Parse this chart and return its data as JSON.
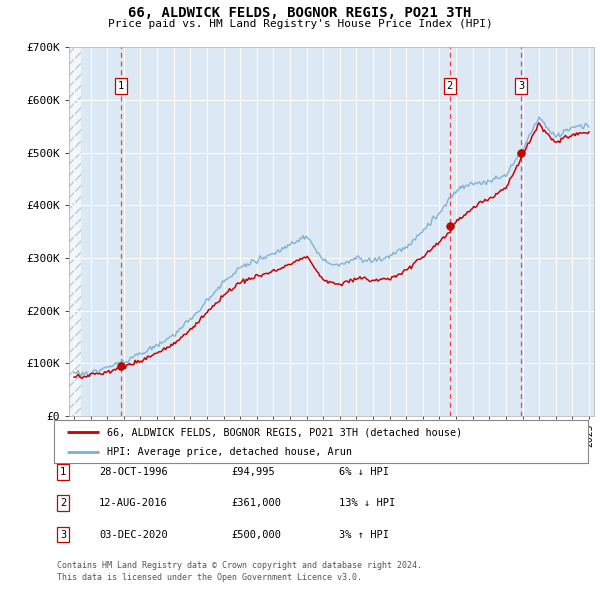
{
  "title": "66, ALDWICK FELDS, BOGNOR REGIS, PO21 3TH",
  "subtitle": "Price paid vs. HM Land Registry's House Price Index (HPI)",
  "background_color": "#dce9f5",
  "plot_bg": "#dce9f5",
  "red_line_color": "#cc0000",
  "blue_line_color": "#7ab0d4",
  "sale_dot_color": "#cc0000",
  "dashed_line_color": "#ee4444",
  "ylim": [
    0,
    700000
  ],
  "yticks": [
    0,
    100000,
    200000,
    300000,
    400000,
    500000,
    600000,
    700000
  ],
  "ytick_labels": [
    "£0",
    "£100K",
    "£200K",
    "£300K",
    "£400K",
    "£500K",
    "£600K",
    "£700K"
  ],
  "x_start_year": 1994,
  "x_end_year": 2025,
  "sales": [
    {
      "label": "1",
      "date": "28-OCT-1996",
      "year": 1996.83,
      "price": 94995
    },
    {
      "label": "2",
      "date": "12-AUG-2016",
      "year": 2016.62,
      "price": 361000
    },
    {
      "label": "3",
      "date": "03-DEC-2020",
      "year": 2020.92,
      "price": 500000
    }
  ],
  "legend_label_red": "66, ALDWICK FELDS, BOGNOR REGIS, PO21 3TH (detached house)",
  "legend_label_blue": "HPI: Average price, detached house, Arun",
  "footnote": "Contains HM Land Registry data © Crown copyright and database right 2024.\nThis data is licensed under the Open Government Licence v3.0.",
  "table_rows": [
    {
      "num": "1",
      "date": "28-OCT-1996",
      "price": "£94,995",
      "info": "6% ↓ HPI"
    },
    {
      "num": "2",
      "date": "12-AUG-2016",
      "price": "£361,000",
      "info": "13% ↓ HPI"
    },
    {
      "num": "3",
      "date": "03-DEC-2020",
      "price": "£500,000",
      "info": "3% ↑ HPI"
    }
  ]
}
